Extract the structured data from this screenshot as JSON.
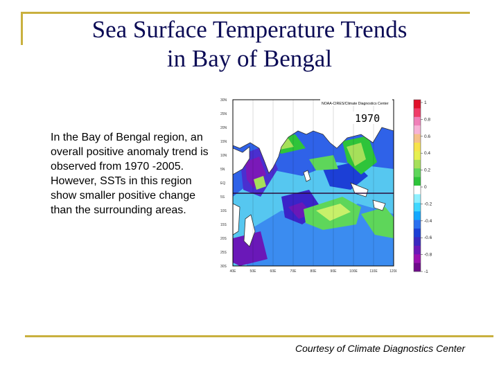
{
  "slide": {
    "title_line1": "Sea Surface Temperature Trends",
    "title_line2": "in Bay of Bengal",
    "body": "In the Bay of Bengal region, an overall positive anomaly trend is observed from 1970 -2005. However, SSTs in this region show smaller positive change than the surrounding areas.",
    "credit": "Courtesy of Climate Diagnostics Center"
  },
  "map": {
    "header": "NOAA-CIRES/Climate Diagnostics Center",
    "year_label": "1970",
    "lat_labels": [
      "30N",
      "25N",
      "20N",
      "15N",
      "10N",
      "5N",
      "EQ",
      "5S",
      "10S",
      "15S",
      "20S",
      "25S",
      "30S"
    ],
    "lon_labels": [
      "40E",
      "50E",
      "60E",
      "70E",
      "80E",
      "90E",
      "100E",
      "110E",
      "120E"
    ]
  },
  "colorbar": {
    "labels": [
      "1",
      "0.8",
      "0.6",
      "0.4",
      "0.2",
      "0",
      "-0.2",
      "-0.4",
      "-0.6",
      "-0.8",
      "-1"
    ],
    "colors": [
      "#e0102a",
      "#f03c68",
      "#f07fb8",
      "#f7b2d6",
      "#f5c08a",
      "#f7e34a",
      "#e6f050",
      "#a6e05a",
      "#5ed65a",
      "#2ec43a",
      "#ffffff",
      "#8ef0ff",
      "#3fd8ff",
      "#13a8ff",
      "#2a70f0",
      "#1c3fd6",
      "#3a28c0",
      "#6a18b8",
      "#9a10b0",
      "#6e0a8a"
    ]
  }
}
